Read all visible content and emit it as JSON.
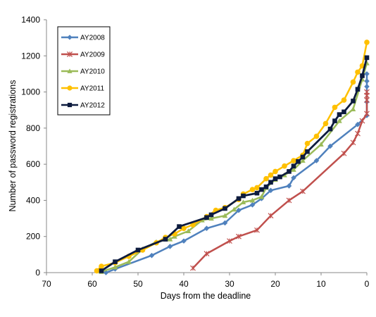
{
  "chart_data": {
    "type": "line",
    "title": "",
    "xlabel": "Days from the deadline",
    "ylabel": "Number of password  registrations",
    "xlim": [
      70,
      0
    ],
    "ylim": [
      0,
      1400
    ],
    "x_ticks": [
      "70",
      "60",
      "50",
      "40",
      "30",
      "20",
      "10",
      "0"
    ],
    "y_ticks": [
      "0",
      "200",
      "400",
      "600",
      "800",
      "1000",
      "1200",
      "1400"
    ],
    "grid": false,
    "legend": {
      "position": "top-left",
      "boxed": true
    },
    "series": [
      {
        "name": "AY2008",
        "color": "#4f81bd",
        "marker": "diamond",
        "points": [
          [
            57,
            0
          ],
          [
            55,
            20
          ],
          [
            47,
            95
          ],
          [
            43,
            145
          ],
          [
            40,
            175
          ],
          [
            35,
            245
          ],
          [
            31,
            275
          ],
          [
            28,
            345
          ],
          [
            25,
            375
          ],
          [
            23,
            410
          ],
          [
            21,
            455
          ],
          [
            17,
            480
          ],
          [
            16,
            525
          ],
          [
            11,
            620
          ],
          [
            8,
            700
          ],
          [
            2,
            820
          ],
          [
            0,
            870
          ],
          [
            0,
            945
          ],
          [
            0,
            1030
          ],
          [
            0,
            1060
          ],
          [
            0,
            1100
          ]
        ]
      },
      {
        "name": "AY2009",
        "color": "#c0504d",
        "marker": "x",
        "points": [
          [
            38,
            25
          ],
          [
            35,
            105
          ],
          [
            30,
            175
          ],
          [
            28,
            200
          ],
          [
            24,
            235
          ],
          [
            21,
            315
          ],
          [
            17,
            400
          ],
          [
            14,
            450
          ],
          [
            5,
            660
          ],
          [
            3,
            720
          ],
          [
            2,
            770
          ],
          [
            1,
            840
          ],
          [
            0,
            880
          ],
          [
            0,
            955
          ],
          [
            0,
            980
          ],
          [
            0,
            1000
          ]
        ]
      },
      {
        "name": "AY2010",
        "color": "#9bbb59",
        "marker": "triangle",
        "points": [
          [
            58,
            5
          ],
          [
            55,
            30
          ],
          [
            52,
            60
          ],
          [
            49,
            130
          ],
          [
            46,
            170
          ],
          [
            43,
            185
          ],
          [
            42,
            200
          ],
          [
            39,
            230
          ],
          [
            36,
            290
          ],
          [
            34,
            300
          ],
          [
            31,
            315
          ],
          [
            29,
            350
          ],
          [
            27,
            390
          ],
          [
            25,
            400
          ],
          [
            23,
            420
          ],
          [
            22,
            470
          ],
          [
            20,
            515
          ],
          [
            18,
            540
          ],
          [
            16,
            570
          ],
          [
            14,
            620
          ],
          [
            10,
            710
          ],
          [
            6,
            840
          ],
          [
            3,
            905
          ],
          [
            1,
            1070
          ],
          [
            0,
            1160
          ]
        ]
      },
      {
        "name": "AY2011",
        "color": "#ffc000",
        "marker": "circle",
        "points": [
          [
            59,
            10
          ],
          [
            58,
            35
          ],
          [
            55,
            55
          ],
          [
            52,
            90
          ],
          [
            49,
            125
          ],
          [
            46,
            165
          ],
          [
            44,
            195
          ],
          [
            42,
            215
          ],
          [
            40,
            245
          ],
          [
            38,
            265
          ],
          [
            35,
            310
          ],
          [
            33,
            345
          ],
          [
            31,
            360
          ],
          [
            28,
            405
          ],
          [
            27,
            435
          ],
          [
            25,
            460
          ],
          [
            24,
            470
          ],
          [
            22,
            520
          ],
          [
            21,
            540
          ],
          [
            20,
            560
          ],
          [
            18,
            590
          ],
          [
            16,
            620
          ],
          [
            14,
            650
          ],
          [
            13,
            715
          ],
          [
            11,
            755
          ],
          [
            9,
            825
          ],
          [
            7,
            915
          ],
          [
            5,
            955
          ],
          [
            3,
            1055
          ],
          [
            2,
            1110
          ],
          [
            1,
            1145
          ],
          [
            0,
            1275
          ]
        ]
      },
      {
        "name": "AY2012",
        "color": "#0d1b3e",
        "marker": "square",
        "points": [
          [
            58,
            10
          ],
          [
            55,
            60
          ],
          [
            50,
            125
          ],
          [
            44,
            185
          ],
          [
            41,
            255
          ],
          [
            35,
            305
          ],
          [
            34,
            320
          ],
          [
            31,
            355
          ],
          [
            28,
            410
          ],
          [
            27,
            425
          ],
          [
            24,
            440
          ],
          [
            23,
            460
          ],
          [
            22,
            475
          ],
          [
            21,
            500
          ],
          [
            20,
            520
          ],
          [
            19,
            530
          ],
          [
            17,
            560
          ],
          [
            16,
            590
          ],
          [
            15,
            615
          ],
          [
            14,
            640
          ],
          [
            13,
            670
          ],
          [
            8,
            795
          ],
          [
            7,
            840
          ],
          [
            6,
            875
          ],
          [
            5,
            890
          ],
          [
            3,
            950
          ],
          [
            2,
            1015
          ],
          [
            1,
            1090
          ],
          [
            0,
            1190
          ]
        ]
      }
    ]
  }
}
